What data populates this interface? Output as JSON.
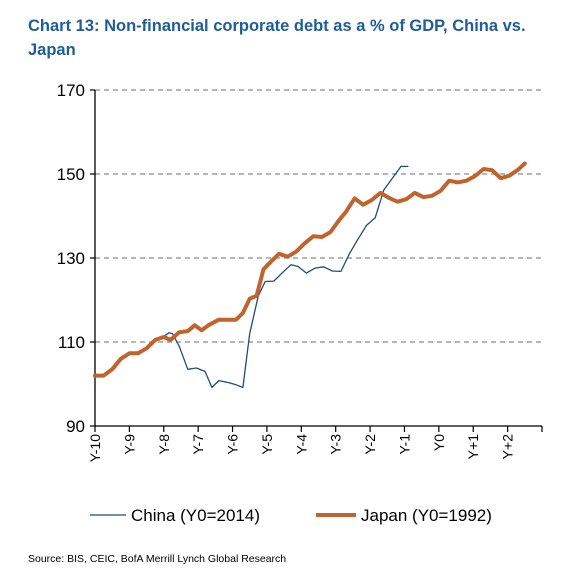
{
  "title": "Chart 13: Non-financial corporate debt as a % of GDP, China vs. Japan",
  "source": "Source: BIS, CEIC,  BofA Merrill Lynch Global Research",
  "chart_data": {
    "type": "line",
    "title": "Chart 13: Non-financial corporate debt as a % of GDP, China vs. Japan",
    "ylim": [
      90,
      170
    ],
    "yticks": [
      90,
      110,
      130,
      150,
      170
    ],
    "xlim": [
      -10,
      3
    ],
    "xticks": [
      {
        "x": -10,
        "label": "Y-10"
      },
      {
        "x": -9,
        "label": "Y-9"
      },
      {
        "x": -8,
        "label": "Y-8"
      },
      {
        "x": -7,
        "label": "Y-7"
      },
      {
        "x": -6,
        "label": "Y-6"
      },
      {
        "x": -5,
        "label": "Y-5"
      },
      {
        "x": -4,
        "label": "Y-4"
      },
      {
        "x": -3,
        "label": "Y-3"
      },
      {
        "x": -2,
        "label": "Y-2"
      },
      {
        "x": -1,
        "label": "Y-1"
      },
      {
        "x": 0,
        "label": "Y0"
      },
      {
        "x": 1,
        "label": "Y+1"
      },
      {
        "x": 2,
        "label": "Y+2"
      }
    ],
    "grid": "horizontal dashed",
    "legend_position": "bottom",
    "series": [
      {
        "name": "China (Y0=2014)",
        "color": "#1f4e79",
        "points": [
          [
            -8.05,
            111.0
          ],
          [
            -7.85,
            112.2
          ],
          [
            -7.75,
            112.0
          ],
          [
            -7.55,
            109.0
          ],
          [
            -7.3,
            103.5
          ],
          [
            -7.05,
            103.8
          ],
          [
            -6.8,
            103.0
          ],
          [
            -6.6,
            99.2
          ],
          [
            -6.4,
            100.8
          ],
          [
            -6.1,
            100.3
          ],
          [
            -5.9,
            99.8
          ],
          [
            -5.7,
            99.2
          ],
          [
            -5.5,
            112.0
          ],
          [
            -5.25,
            121.0
          ],
          [
            -5.05,
            124.4
          ],
          [
            -4.8,
            124.5
          ],
          [
            -4.55,
            126.5
          ],
          [
            -4.3,
            128.4
          ],
          [
            -4.1,
            128.0
          ],
          [
            -3.85,
            126.4
          ],
          [
            -3.6,
            127.6
          ],
          [
            -3.35,
            127.9
          ],
          [
            -3.1,
            126.9
          ],
          [
            -2.85,
            126.8
          ],
          [
            -2.6,
            131.0
          ],
          [
            -2.35,
            134.5
          ],
          [
            -2.1,
            137.8
          ],
          [
            -1.85,
            139.6
          ],
          [
            -1.6,
            146.2
          ],
          [
            -1.35,
            149.0
          ],
          [
            -1.1,
            151.8
          ],
          [
            -0.9,
            151.8
          ]
        ]
      },
      {
        "name": "Japan (Y0=1992)",
        "color": "#c0632d",
        "points": [
          [
            -10.0,
            102.0
          ],
          [
            -9.75,
            102.0
          ],
          [
            -9.5,
            103.5
          ],
          [
            -9.25,
            106.0
          ],
          [
            -9.0,
            107.3
          ],
          [
            -8.75,
            107.3
          ],
          [
            -8.5,
            108.5
          ],
          [
            -8.25,
            110.5
          ],
          [
            -8.0,
            111.2
          ],
          [
            -7.8,
            110.5
          ],
          [
            -7.55,
            112.3
          ],
          [
            -7.3,
            112.6
          ],
          [
            -7.1,
            114.0
          ],
          [
            -6.9,
            112.8
          ],
          [
            -6.7,
            114.0
          ],
          [
            -6.4,
            115.3
          ],
          [
            -6.15,
            115.3
          ],
          [
            -5.9,
            115.3
          ],
          [
            -5.7,
            116.9
          ],
          [
            -5.5,
            120.3
          ],
          [
            -5.3,
            121.0
          ],
          [
            -5.1,
            127.3
          ],
          [
            -4.9,
            129.0
          ],
          [
            -4.65,
            131.0
          ],
          [
            -4.4,
            130.3
          ],
          [
            -4.15,
            131.5
          ],
          [
            -3.9,
            133.5
          ],
          [
            -3.65,
            135.2
          ],
          [
            -3.4,
            135.0
          ],
          [
            -3.15,
            136.2
          ],
          [
            -2.9,
            139.0
          ],
          [
            -2.7,
            141.0
          ],
          [
            -2.45,
            144.2
          ],
          [
            -2.2,
            142.7
          ],
          [
            -1.95,
            143.8
          ],
          [
            -1.7,
            145.5
          ],
          [
            -1.45,
            144.3
          ],
          [
            -1.2,
            143.4
          ],
          [
            -0.95,
            144.0
          ],
          [
            -0.7,
            145.5
          ],
          [
            -0.45,
            144.5
          ],
          [
            -0.2,
            144.8
          ],
          [
            0.05,
            146.0
          ],
          [
            0.3,
            148.4
          ],
          [
            0.55,
            148.0
          ],
          [
            0.8,
            148.4
          ],
          [
            1.05,
            149.5
          ],
          [
            1.3,
            151.2
          ],
          [
            1.55,
            150.9
          ],
          [
            1.8,
            149.0
          ],
          [
            2.05,
            149.6
          ],
          [
            2.3,
            151.0
          ],
          [
            2.5,
            152.5
          ]
        ]
      }
    ]
  }
}
